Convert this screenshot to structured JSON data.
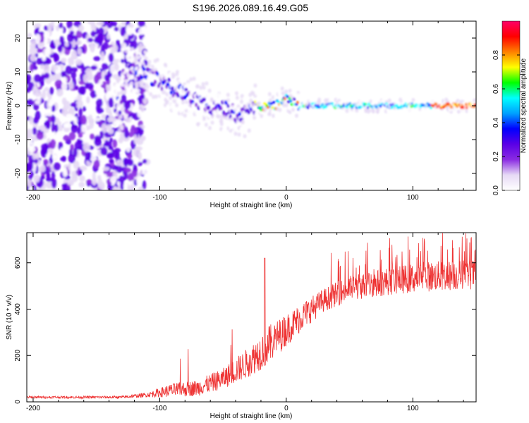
{
  "title": "S196.2026.089.16.49.G05",
  "chart_data": [
    {
      "type": "heatmap",
      "xlabel": "Height of straight line (km)",
      "ylabel": "Frequency (Hz)",
      "xlim": [
        -205,
        150
      ],
      "ylim": [
        -25,
        25
      ],
      "xticks": [
        -200,
        -100,
        0,
        100
      ],
      "yticks": [
        -20,
        -10,
        0,
        10,
        20
      ],
      "colorbar": {
        "label": "Normalized spectral amplitude",
        "range": [
          0,
          1
        ],
        "ticks": [
          "0.0",
          "0.2",
          "0.4",
          "0.6",
          "0.8"
        ],
        "tick_values": [
          0,
          0.2,
          0.4,
          0.6,
          0.8
        ],
        "colors": [
          "#ffffff",
          "#e6d9f5",
          "#8a2be2",
          "#5a00e6",
          "#0000ff",
          "#00a0ff",
          "#00ffff",
          "#00ff00",
          "#ffff00",
          "#ff8000",
          "#ff0000",
          "#ff0066"
        ]
      },
      "ridge": [
        {
          "x": -130,
          "f": 12
        },
        {
          "x": -110,
          "f": 9
        },
        {
          "x": -90,
          "f": 5
        },
        {
          "x": -70,
          "f": 1
        },
        {
          "x": -50,
          "f": -1
        },
        {
          "x": -35,
          "f": -3
        },
        {
          "x": -25,
          "f": 0
        },
        {
          "x": -10,
          "f": 0
        },
        {
          "x": 0,
          "f": 2
        },
        {
          "x": 10,
          "f": 0
        },
        {
          "x": 50,
          "f": 0
        },
        {
          "x": 100,
          "f": 0
        },
        {
          "x": 150,
          "f": 0
        }
      ]
    },
    {
      "type": "line",
      "xlabel": "Height of straight line (km)",
      "ylabel": "SNR (10 * v/v)",
      "xlim": [
        -205,
        150
      ],
      "ylim": [
        0,
        730
      ],
      "xticks": [
        -200,
        -100,
        0,
        100
      ],
      "yticks": [
        0,
        200,
        400,
        600
      ],
      "line_color": "#ee3333",
      "envelope": [
        {
          "x": -205,
          "base": 20,
          "amp": 10
        },
        {
          "x": -130,
          "base": 20,
          "amp": 12
        },
        {
          "x": -110,
          "base": 30,
          "amp": 20
        },
        {
          "x": -90,
          "base": 50,
          "amp": 60
        },
        {
          "x": -70,
          "base": 60,
          "amp": 70
        },
        {
          "x": -50,
          "base": 100,
          "amp": 90
        },
        {
          "x": -30,
          "base": 170,
          "amp": 130
        },
        {
          "x": -15,
          "base": 240,
          "amp": 170
        },
        {
          "x": 0,
          "base": 310,
          "amp": 140
        },
        {
          "x": 15,
          "base": 380,
          "amp": 120
        },
        {
          "x": 30,
          "base": 440,
          "amp": 100
        },
        {
          "x": 50,
          "base": 490,
          "amp": 110
        },
        {
          "x": 80,
          "base": 520,
          "amp": 120
        },
        {
          "x": 110,
          "base": 540,
          "amp": 130
        },
        {
          "x": 150,
          "base": 550,
          "amp": 130
        }
      ]
    }
  ]
}
